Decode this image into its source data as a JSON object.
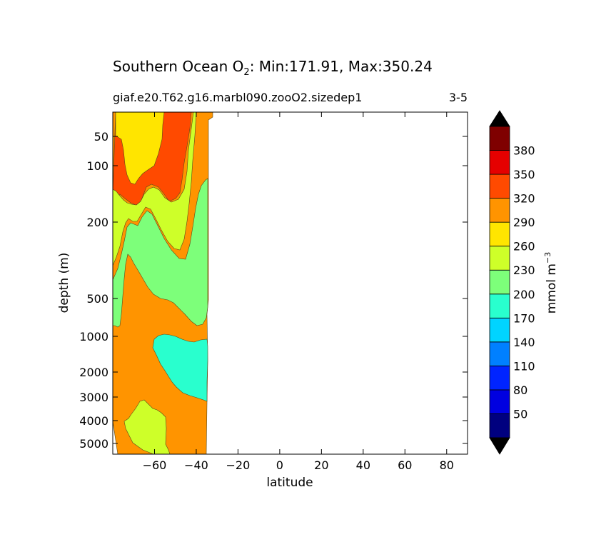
{
  "chart_data": {
    "type": "heatmap",
    "title": {
      "prefix": "Southern Ocean O",
      "subscript": "2",
      "suffix": ": Min:171.91, Max:350.24"
    },
    "subtitle_left": "giaf.e20.T62.g16.marbl090.zooO2.sizedep1",
    "subtitle_right": "3-5",
    "xlabel": "latitude",
    "ylabel": "depth (m)",
    "xlim": [
      -80,
      90
    ],
    "x_ticks": [
      -60,
      -40,
      -20,
      0,
      20,
      40,
      60,
      80
    ],
    "x_tick_labels": [
      "−60",
      "−40",
      "−20",
      "0",
      "20",
      "40",
      "60",
      "80"
    ],
    "y_ticks": [
      50,
      100,
      200,
      500,
      1000,
      2000,
      3000,
      4000,
      5000
    ],
    "y_tick_labels": [
      "50",
      "100",
      "200",
      "500",
      "1000",
      "2000",
      "3000",
      "4000",
      "5000"
    ],
    "y_scale": "piecewise depth (inverted)",
    "colorbar": {
      "label_main": "mmol m",
      "label_sup": "−3",
      "levels": [
        20,
        50,
        80,
        110,
        140,
        170,
        200,
        230,
        260,
        290,
        320,
        350,
        380,
        410
      ],
      "tick_labels": [
        "50",
        "80",
        "110",
        "140",
        "170",
        "200",
        "230",
        "260",
        "290",
        "320",
        "350",
        "380"
      ],
      "colors": [
        "#00007f",
        "#0000e0",
        "#0024ff",
        "#0080ff",
        "#00d4ff",
        "#29ffce",
        "#7dff7a",
        "#ceff29",
        "#ffe500",
        "#ff9400",
        "#ff4a00",
        "#e50000",
        "#7f0000"
      ],
      "extend": "both",
      "extend_color": "#000000"
    },
    "regions": [
      {
        "level": 290,
        "color": "#ff9400"
      },
      {
        "level": 320,
        "color": "#ff4a00"
      },
      {
        "level": 260,
        "color": "#ffe500"
      },
      {
        "level": 230,
        "color": "#ceff29"
      },
      {
        "level": 200,
        "color": "#7dff7a"
      },
      {
        "level": 170,
        "color": "#29ffce"
      },
      {
        "level": 230,
        "color": "#ceff29"
      }
    ]
  }
}
